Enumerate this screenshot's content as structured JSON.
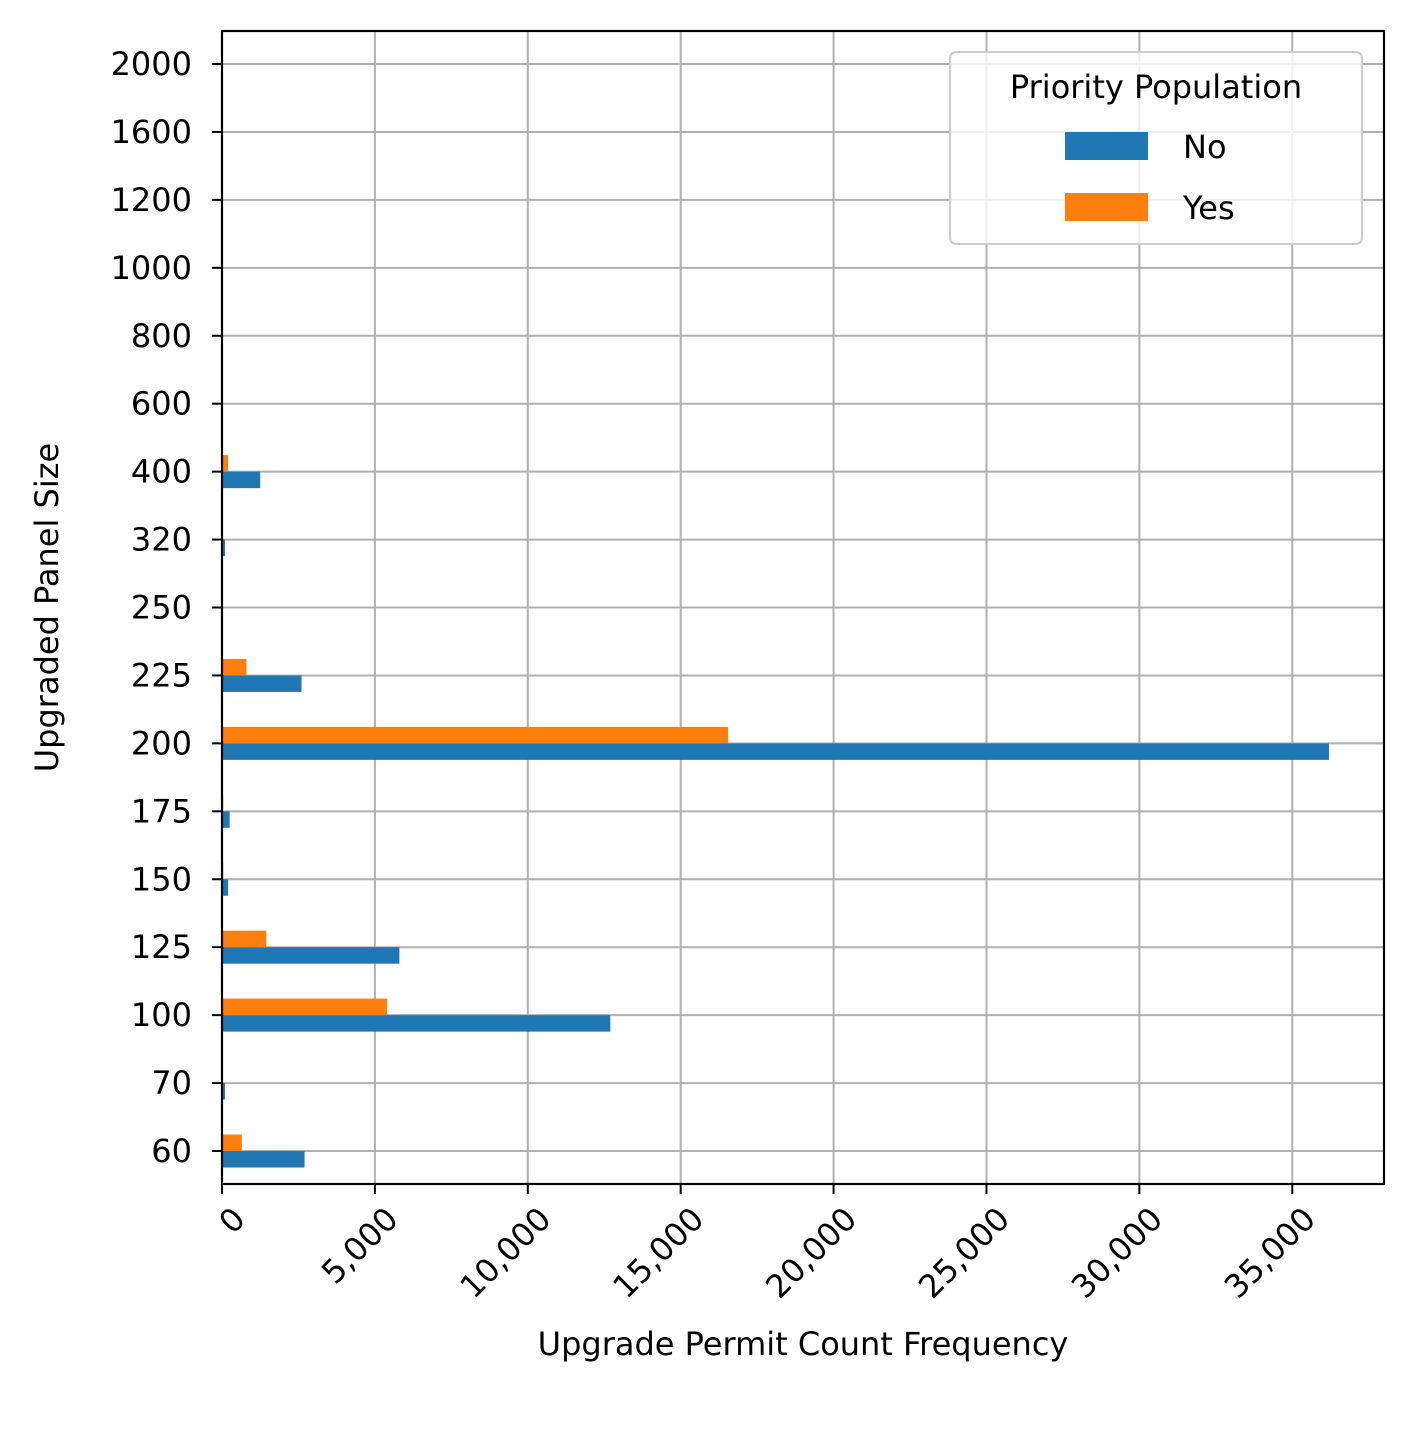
{
  "chart_data": {
    "type": "bar",
    "orientation": "horizontal",
    "xlabel": "Upgrade Permit Count Frequency",
    "ylabel": "Upgraded Panel Size",
    "categories": [
      "60",
      "70",
      "100",
      "125",
      "150",
      "175",
      "200",
      "225",
      "250",
      "320",
      "400",
      "600",
      "800",
      "1000",
      "1200",
      "1600",
      "2000"
    ],
    "series": [
      {
        "name": "No",
        "color": "#1f77b4",
        "values": [
          2700,
          100,
          12700,
          5800,
          200,
          250,
          36200,
          2600,
          30,
          100,
          1250,
          10,
          10,
          5,
          3,
          2,
          2
        ]
      },
      {
        "name": "Yes",
        "color": "#ff7f0e",
        "values": [
          650,
          20,
          5400,
          1450,
          40,
          40,
          16550,
          800,
          10,
          30,
          200,
          3,
          2,
          1,
          1,
          1,
          1
        ]
      }
    ],
    "xlim": [
      0,
      38000
    ],
    "xticks": [
      0,
      5000,
      10000,
      15000,
      20000,
      25000,
      30000,
      35000
    ],
    "xtick_labels": [
      "0",
      "5,000",
      "10,000",
      "15,000",
      "20,000",
      "25,000",
      "30,000",
      "35,000"
    ],
    "xtick_rotation_deg": 45,
    "grid": true,
    "legend": {
      "title": "Priority Population",
      "position": "top-right"
    }
  }
}
